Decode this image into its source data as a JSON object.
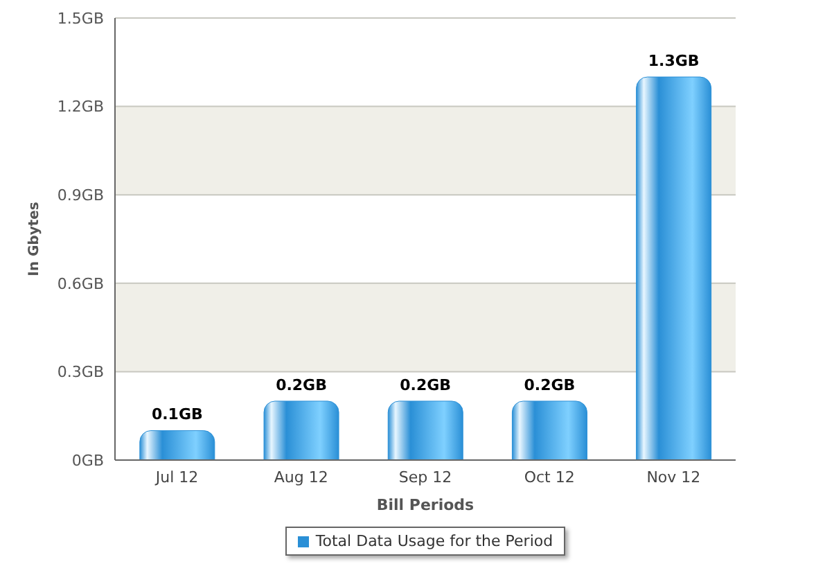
{
  "chart_data": {
    "type": "bar",
    "xlabel": "Bill Periods",
    "ylabel": "In Gbytes",
    "categories": [
      "Jul 12",
      "Aug 12",
      "Sep 12",
      "Oct 12",
      "Nov 12"
    ],
    "series": [
      {
        "name": "Total Data Usage for the Period",
        "color": "#2a8fd6",
        "values": [
          0.1,
          0.2,
          0.2,
          0.2,
          1.3
        ],
        "value_labels": [
          "0.1GB",
          "0.2GB",
          "0.2GB",
          "0.2GB",
          "1.3GB"
        ]
      }
    ],
    "ylim": [
      0,
      1.5
    ],
    "yticks": [
      {
        "value": 0,
        "label": "0GB"
      },
      {
        "value": 0.3,
        "label": "0.3GB"
      },
      {
        "value": 0.6,
        "label": "0.6GB"
      },
      {
        "value": 0.9,
        "label": "0.9GB"
      },
      {
        "value": 1.2,
        "label": "1.2GB"
      },
      {
        "value": 1.5,
        "label": "1.5GB"
      }
    ],
    "grid": "y",
    "legend": "bottom"
  }
}
